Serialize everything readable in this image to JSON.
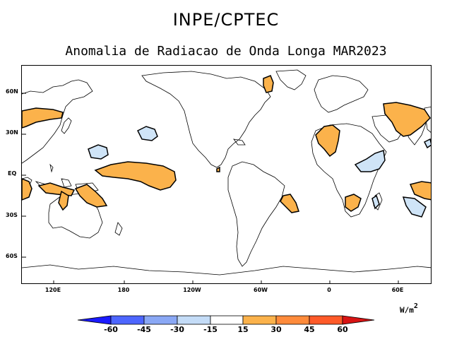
{
  "header": {
    "title": "INPE/CPTEC",
    "subtitle": "Anomalia de Radiacao de Onda Longa MAR2023"
  },
  "map": {
    "lat_labels": [
      "60N",
      "30N",
      "EQ",
      "30S",
      "60S"
    ],
    "lon_labels": [
      "120E",
      "180",
      "120W",
      "60W",
      "0",
      "60E"
    ],
    "colors": {
      "positive_fill": "#fbb24b",
      "negative_fill": "#cfe4f7",
      "contour": "#000000"
    }
  },
  "colorbar": {
    "unit_base": "W/m",
    "unit_exp": "2",
    "tick_labels": [
      "-60",
      "-45",
      "-30",
      "-15",
      "15",
      "30",
      "45",
      "60"
    ],
    "colors": [
      "#1a1aff",
      "#4d66ff",
      "#8aa8f5",
      "#c4dcf7",
      "#ffffff",
      "#fbb24b",
      "#ff8b3b",
      "#ff5a28",
      "#d81414"
    ]
  }
}
